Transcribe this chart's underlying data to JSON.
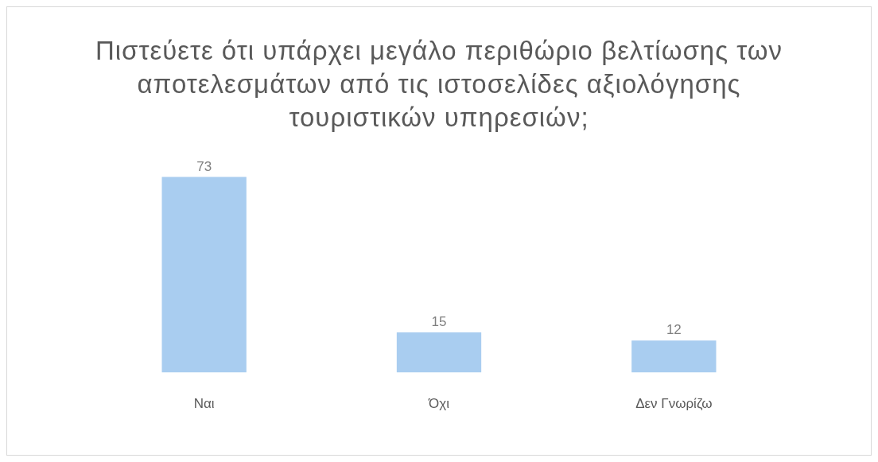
{
  "chart_data": {
    "type": "bar",
    "title": "Πιστεύετε ότι υπάρχει μεγάλο περιθώριο βελτίωσης των αποτελεσμάτων από τις ιστοσελίδες αξιολόγησης τουριστικών υπηρεσιών;",
    "categories": [
      "Ναι",
      "Όχι",
      "Δεν Γνωρίζω"
    ],
    "values": [
      73,
      15,
      12
    ],
    "color": "#a9cdf0",
    "data_labels": true,
    "grid": false,
    "legend": false
  }
}
